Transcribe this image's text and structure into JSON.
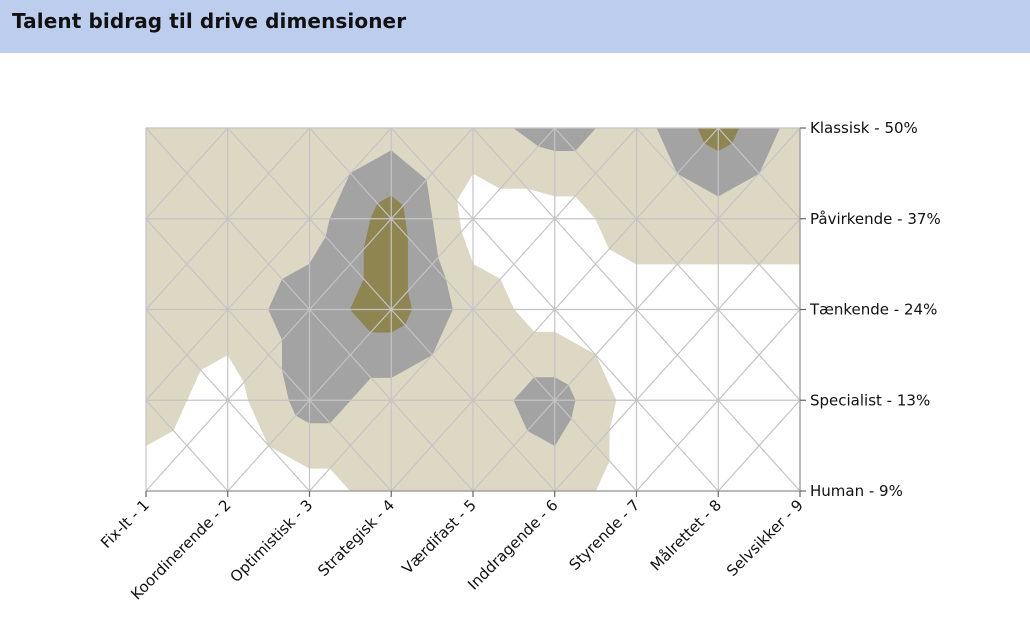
{
  "header": {
    "title": "Talent bidrag til drive dimensioner"
  },
  "chart_data": {
    "type": "heatmap",
    "title": "Talent bidrag til drive dimensioner",
    "x_categories": [
      "Fix-It - 1",
      "Koordinerende - 2",
      "Optimistisk - 3",
      "Strategisk - 4",
      "Værdifast - 5",
      "Inddragende - 6",
      "Styrende - 7",
      "Målrettet - 8",
      "Selvsikker - 9"
    ],
    "y_categories": [
      "Human - 9%",
      "Specialist - 13%",
      "Tænkende - 24%",
      "Påvirkende - 37%",
      "Klassisk - 50%"
    ],
    "y_axis_position": "right",
    "grid": true,
    "colors": {
      "level_1": "#ffffff",
      "level_2": "#ddd8c3",
      "level_3": "#a3a3a3",
      "level_4": "#8e8550",
      "grid": "#c4c4c4",
      "axis": "#999999"
    },
    "values": [
      [
        1,
        1,
        1,
        2,
        2,
        2,
        1,
        1,
        1
      ],
      [
        2,
        1,
        3,
        2,
        2,
        3,
        1,
        1,
        1
      ],
      [
        2,
        2,
        3,
        4,
        2,
        1,
        1,
        1,
        1
      ],
      [
        2,
        2,
        2,
        4,
        1,
        1,
        2,
        2,
        2
      ],
      [
        2,
        2,
        2,
        2,
        2,
        3,
        2,
        4,
        2
      ]
    ]
  }
}
